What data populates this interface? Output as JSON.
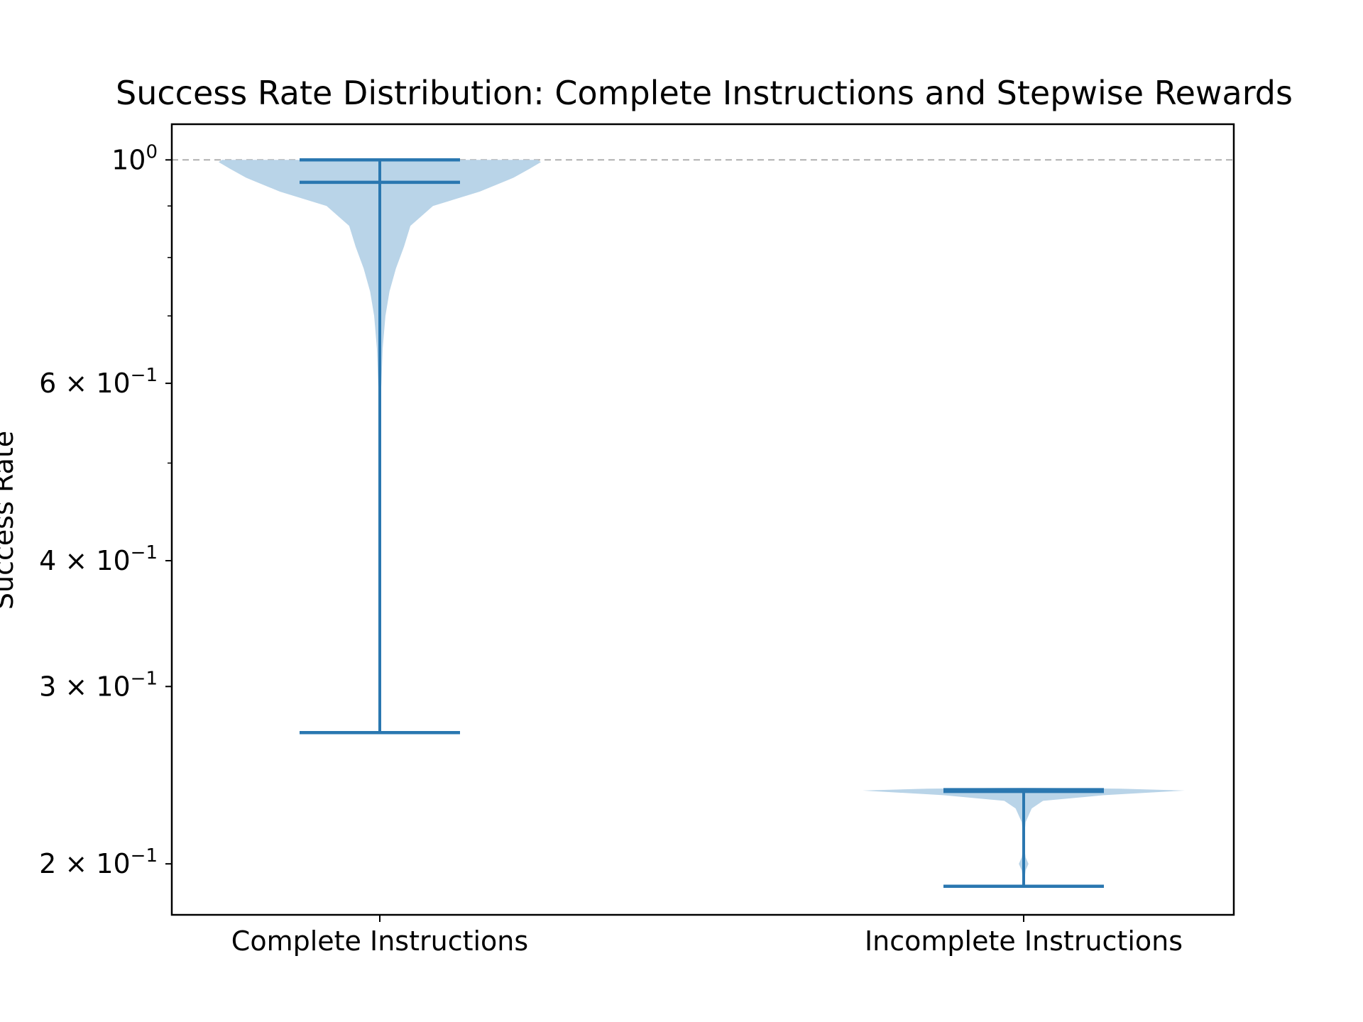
{
  "colors": {
    "violin_fill": "#b9d4e8",
    "violin_line": "#2a77b0",
    "reference_line": "#b0b0b0",
    "axis": "#000000"
  },
  "chart_data": {
    "type": "violin",
    "title": "Success Rate Distribution: Complete Instructions and Stepwise Rewards",
    "xlabel": "",
    "ylabel": "Success Rate",
    "y_scale": "log",
    "ylim": [
      0.178,
      1.085
    ],
    "y_major_ticks": [
      {
        "value": 1.0,
        "base": "10",
        "exp": "0"
      },
      {
        "value": 0.6,
        "base": "6 × 10",
        "exp": "−1"
      },
      {
        "value": 0.4,
        "base": "4 × 10",
        "exp": "−1"
      },
      {
        "value": 0.3,
        "base": "3 × 10",
        "exp": "−1"
      },
      {
        "value": 0.2,
        "base": "2 × 10",
        "exp": "−1"
      }
    ],
    "y_minor_ticks": [
      0.9,
      0.8,
      0.7,
      0.5
    ],
    "reference_line": {
      "value": 1.0,
      "style": "dashed"
    },
    "categories": [
      "Complete Instructions",
      "Incomplete Instructions"
    ],
    "series": [
      {
        "category": "Complete Instructions",
        "min": 0.27,
        "max": 1.0,
        "mean": 0.95,
        "density": [
          {
            "y": 0.27,
            "w": 0.0
          },
          {
            "y": 0.4,
            "w": 0.0
          },
          {
            "y": 0.56,
            "w": 0.0
          },
          {
            "y": 0.6,
            "w": 0.01
          },
          {
            "y": 0.65,
            "w": 0.018
          },
          {
            "y": 0.7,
            "w": 0.035
          },
          {
            "y": 0.74,
            "w": 0.06
          },
          {
            "y": 0.78,
            "w": 0.1
          },
          {
            "y": 0.82,
            "w": 0.15
          },
          {
            "y": 0.86,
            "w": 0.19
          },
          {
            "y": 0.9,
            "w": 0.33
          },
          {
            "y": 0.93,
            "w": 0.62
          },
          {
            "y": 0.96,
            "w": 0.83
          },
          {
            "y": 0.98,
            "w": 0.93
          },
          {
            "y": 0.995,
            "w": 1.0
          },
          {
            "y": 1.0,
            "w": 0.98
          }
        ]
      },
      {
        "category": "Incomplete Instructions",
        "min": 0.19,
        "max": 0.237,
        "mean": 0.236,
        "density": [
          {
            "y": 0.19,
            "w": 0.0
          },
          {
            "y": 0.197,
            "w": 0.012
          },
          {
            "y": 0.2,
            "w": 0.03
          },
          {
            "y": 0.203,
            "w": 0.012
          },
          {
            "y": 0.21,
            "w": 0.0
          },
          {
            "y": 0.22,
            "w": 0.012
          },
          {
            "y": 0.227,
            "w": 0.05
          },
          {
            "y": 0.231,
            "w": 0.12
          },
          {
            "y": 0.234,
            "w": 0.5
          },
          {
            "y": 0.2365,
            "w": 1.0
          },
          {
            "y": 0.2375,
            "w": 0.6
          },
          {
            "y": 0.238,
            "w": 0.0
          }
        ]
      }
    ]
  }
}
